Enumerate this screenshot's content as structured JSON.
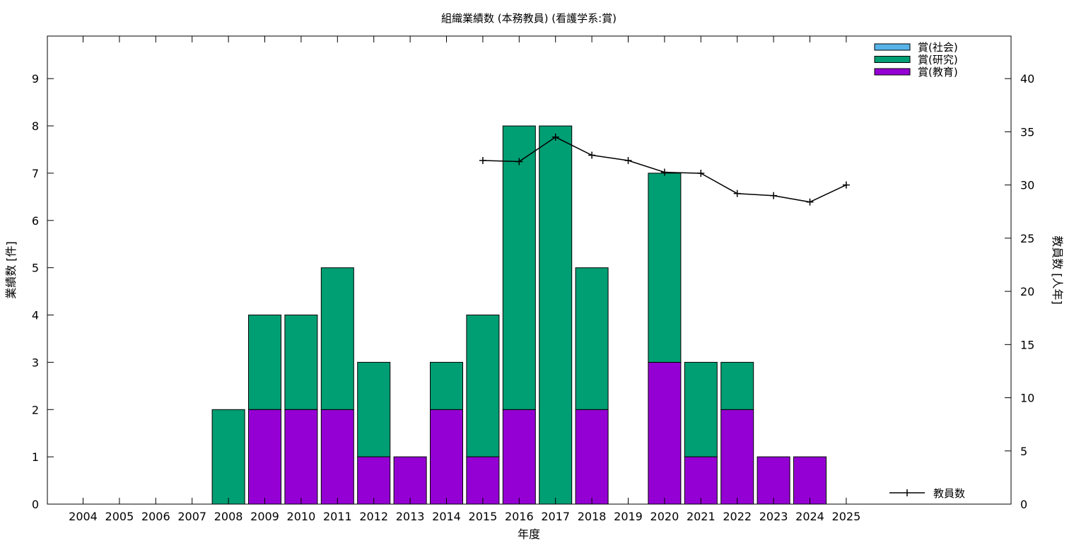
{
  "chart_data": {
    "type": "bar",
    "stacked": true,
    "title": "組織業績数 (本務教員) (看護学系:賞)",
    "xlabel": "年度",
    "ylabel": "業績数 [件]",
    "y2label": "教員数 [人年]",
    "categories": [
      "2004",
      "2005",
      "2006",
      "2007",
      "2008",
      "2009",
      "2010",
      "2011",
      "2012",
      "2013",
      "2014",
      "2015",
      "2016",
      "2017",
      "2018",
      "2019",
      "2020",
      "2021",
      "2022",
      "2023",
      "2024",
      "2025"
    ],
    "ylim": [
      0,
      9.9
    ],
    "y2lim": [
      0,
      44
    ],
    "yticks": [
      0,
      1,
      2,
      3,
      4,
      5,
      6,
      7,
      8,
      9
    ],
    "y2ticks": [
      0,
      5,
      10,
      15,
      20,
      25,
      30,
      35,
      40
    ],
    "series": [
      {
        "name": "賞(教育)",
        "color": "#9400d3",
        "values": [
          0,
          0,
          0,
          0,
          0,
          2,
          2,
          2,
          1,
          1,
          2,
          1,
          2,
          0,
          2,
          0,
          3,
          1,
          2,
          1,
          1,
          0
        ]
      },
      {
        "name": "賞(研究)",
        "color": "#009e73",
        "values": [
          0,
          0,
          0,
          0,
          2,
          2,
          2,
          3,
          2,
          0,
          1,
          3,
          6,
          8,
          3,
          0,
          4,
          2,
          1,
          0,
          0,
          0
        ]
      },
      {
        "name": "賞(社会)",
        "color": "#56b4e9",
        "values": [
          0,
          0,
          0,
          0,
          0,
          0,
          0,
          0,
          0,
          0,
          0,
          0,
          0,
          0,
          0,
          0,
          0,
          0,
          0,
          0,
          0,
          0
        ]
      }
    ],
    "line_series": {
      "name": "教員数",
      "color": "#000000",
      "axis": "y2",
      "x": [
        "2015",
        "2016",
        "2017",
        "2018",
        "2019",
        "2020",
        "2021",
        "2022",
        "2023",
        "2024",
        "2025"
      ],
      "values": [
        32.3,
        32.2,
        34.5,
        32.8,
        32.3,
        31.2,
        31.1,
        29.2,
        29.0,
        28.4,
        30.0
      ]
    },
    "legend_placement": "top-right",
    "line_legend_placement": "bottom-right",
    "grid": false
  }
}
